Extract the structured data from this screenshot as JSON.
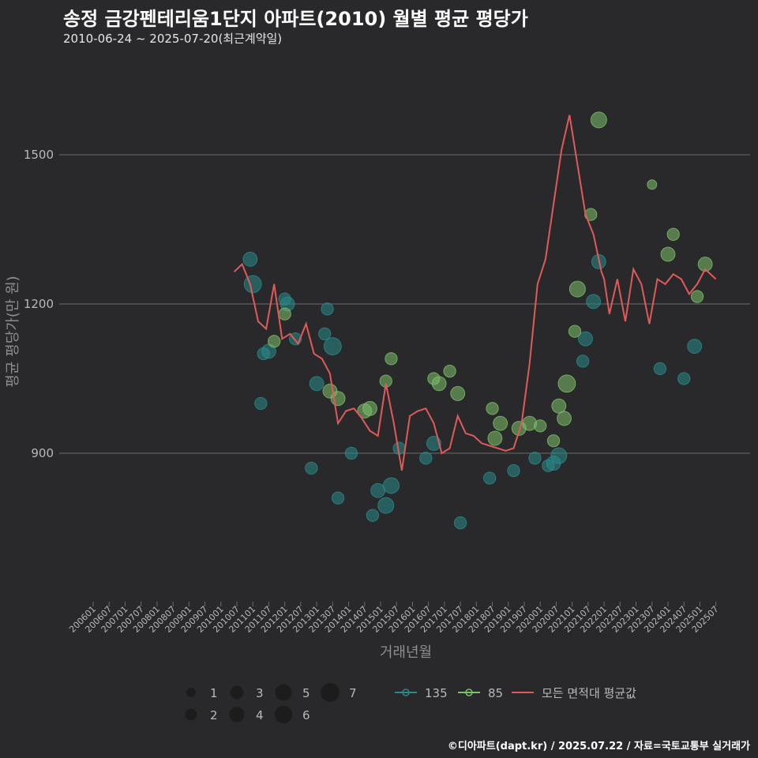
{
  "title": "송정 금강펜테리움1단지 아파트(2010) 월별 평균 평당가",
  "subtitle": "2010-06-24 ~ 2025-07-20(최근계약일)",
  "credit": "©디아파트(dapt.kr) / 2025.07.22 / 자료=국토교통부 실거래가",
  "colors": {
    "background": "#29292b",
    "grid": "#6b6b6b",
    "s135": "#2a8a8a",
    "s85": "#7dbf6a",
    "avg": "#e05a5a",
    "text": "#b8b8b8"
  },
  "chart_data": {
    "type": "scatter",
    "title": "송정 금강펜테리움1단지 아파트(2010) 월별 평균 평당가",
    "subtitle": "2010-06-24 ~ 2025-07-20(최근계약일)",
    "xlabel": "거래년월",
    "ylabel": "평균 평당가(만 원)",
    "ylim": [
      600,
      1680
    ],
    "yticks": [
      900,
      1200,
      1500
    ],
    "xticks": [
      "200601",
      "200607",
      "200701",
      "200707",
      "200801",
      "200807",
      "200901",
      "200907",
      "201001",
      "201007",
      "201101",
      "201107",
      "201201",
      "201207",
      "201301",
      "201307",
      "201401",
      "201407",
      "201501",
      "201507",
      "201601",
      "201607",
      "201701",
      "201707",
      "201801",
      "201807",
      "201901",
      "201907",
      "202001",
      "202007",
      "202101",
      "202107",
      "202201",
      "202207",
      "202301",
      "202307",
      "202401",
      "202407",
      "202501",
      "202507"
    ],
    "grid": true,
    "legend": {
      "size_title": "",
      "sizes": [
        1,
        2,
        3,
        4,
        5,
        6,
        7
      ],
      "series": [
        {
          "name": "135",
          "color": "#2a8a8a"
        },
        {
          "name": "85",
          "color": "#7dbf6a"
        },
        {
          "name": "모든 면적대 평균값",
          "color": "#e05a5a"
        }
      ]
    },
    "series": [
      {
        "name": "모든 면적대 평균값",
        "type": "line",
        "x": [
          "2010-06",
          "2010-09",
          "2010-12",
          "2011-03",
          "2011-06",
          "2011-09",
          "2011-12",
          "2012-03",
          "2012-06",
          "2012-09",
          "2012-12",
          "2013-03",
          "2013-06",
          "2013-09",
          "2013-12",
          "2014-03",
          "2014-06",
          "2014-09",
          "2014-12",
          "2015-03",
          "2015-06",
          "2015-09",
          "2015-12",
          "2016-03",
          "2016-06",
          "2016-09",
          "2016-12",
          "2017-03",
          "2017-06",
          "2017-09",
          "2017-12",
          "2018-03",
          "2018-06",
          "2018-09",
          "2018-12",
          "2019-03",
          "2019-06",
          "2019-09",
          "2019-12",
          "2020-03",
          "2020-06",
          "2020-09",
          "2020-12",
          "2021-03",
          "2021-06",
          "2021-09",
          "2021-12",
          "2022-01",
          "2022-03",
          "2022-06",
          "2022-09",
          "2022-12",
          "2023-03",
          "2023-06",
          "2023-09",
          "2023-12",
          "2024-03",
          "2024-06",
          "2024-09",
          "2024-12",
          "2025-03",
          "2025-07"
        ],
        "y": [
          1265,
          1280,
          1240,
          1165,
          1150,
          1240,
          1130,
          1140,
          1120,
          1160,
          1100,
          1090,
          1060,
          960,
          985,
          990,
          970,
          945,
          935,
          1040,
          960,
          865,
          975,
          985,
          990,
          960,
          900,
          910,
          975,
          940,
          935,
          920,
          915,
          910,
          905,
          910,
          960,
          1080,
          1240,
          1290,
          1400,
          1510,
          1580,
          1480,
          1380,
          1340,
          1265,
          1250,
          1180,
          1250,
          1165,
          1270,
          1240,
          1160,
          1250,
          1240,
          1260,
          1250,
          1220,
          1240,
          1270,
          1250
        ]
      },
      {
        "name": "135",
        "type": "scatter",
        "sizeKey": "count",
        "points": [
          {
            "x": "2010-12",
            "y": 1290,
            "n": 3
          },
          {
            "x": "2011-01",
            "y": 1240,
            "n": 5
          },
          {
            "x": "2011-04",
            "y": 1000,
            "n": 2
          },
          {
            "x": "2011-05",
            "y": 1100,
            "n": 2
          },
          {
            "x": "2011-07",
            "y": 1105,
            "n": 3
          },
          {
            "x": "2012-01",
            "y": 1210,
            "n": 2
          },
          {
            "x": "2012-02",
            "y": 1200,
            "n": 3
          },
          {
            "x": "2012-05",
            "y": 1130,
            "n": 2
          },
          {
            "x": "2012-11",
            "y": 870,
            "n": 2
          },
          {
            "x": "2013-01",
            "y": 1040,
            "n": 3
          },
          {
            "x": "2013-04",
            "y": 1140,
            "n": 2
          },
          {
            "x": "2013-05",
            "y": 1190,
            "n": 2
          },
          {
            "x": "2013-07",
            "y": 1115,
            "n": 5
          },
          {
            "x": "2013-09",
            "y": 810,
            "n": 2
          },
          {
            "x": "2014-02",
            "y": 900,
            "n": 2
          },
          {
            "x": "2014-10",
            "y": 775,
            "n": 2
          },
          {
            "x": "2014-12",
            "y": 825,
            "n": 3
          },
          {
            "x": "2015-03",
            "y": 795,
            "n": 4
          },
          {
            "x": "2015-05",
            "y": 835,
            "n": 4
          },
          {
            "x": "2015-08",
            "y": 910,
            "n": 2
          },
          {
            "x": "2016-06",
            "y": 890,
            "n": 2
          },
          {
            "x": "2016-09",
            "y": 920,
            "n": 3
          },
          {
            "x": "2017-07",
            "y": 760,
            "n": 2
          },
          {
            "x": "2018-06",
            "y": 850,
            "n": 2
          },
          {
            "x": "2019-03",
            "y": 865,
            "n": 2
          },
          {
            "x": "2019-11",
            "y": 890,
            "n": 2
          },
          {
            "x": "2020-04",
            "y": 875,
            "n": 2
          },
          {
            "x": "2020-06",
            "y": 880,
            "n": 3
          },
          {
            "x": "2020-08",
            "y": 895,
            "n": 4
          },
          {
            "x": "2021-05",
            "y": 1085,
            "n": 2
          },
          {
            "x": "2021-06",
            "y": 1130,
            "n": 3
          },
          {
            "x": "2021-09",
            "y": 1205,
            "n": 3
          },
          {
            "x": "2021-11",
            "y": 1285,
            "n": 3
          },
          {
            "x": "2023-10",
            "y": 1070,
            "n": 2
          },
          {
            "x": "2024-07",
            "y": 1050,
            "n": 2
          },
          {
            "x": "2024-11",
            "y": 1115,
            "n": 3
          }
        ]
      },
      {
        "name": "85",
        "type": "scatter",
        "sizeKey": "count",
        "points": [
          {
            "x": "2011-09",
            "y": 1125,
            "n": 2
          },
          {
            "x": "2012-01",
            "y": 1180,
            "n": 2
          },
          {
            "x": "2013-06",
            "y": 1025,
            "n": 3
          },
          {
            "x": "2013-09",
            "y": 1010,
            "n": 3
          },
          {
            "x": "2014-07",
            "y": 985,
            "n": 3
          },
          {
            "x": "2014-09",
            "y": 990,
            "n": 3
          },
          {
            "x": "2015-03",
            "y": 1045,
            "n": 2
          },
          {
            "x": "2015-05",
            "y": 1090,
            "n": 2
          },
          {
            "x": "2016-09",
            "y": 1050,
            "n": 2
          },
          {
            "x": "2016-11",
            "y": 1040,
            "n": 3
          },
          {
            "x": "2017-03",
            "y": 1065,
            "n": 2
          },
          {
            "x": "2017-06",
            "y": 1020,
            "n": 3
          },
          {
            "x": "2018-07",
            "y": 990,
            "n": 2
          },
          {
            "x": "2018-08",
            "y": 930,
            "n": 3
          },
          {
            "x": "2018-10",
            "y": 960,
            "n": 3
          },
          {
            "x": "2019-05",
            "y": 950,
            "n": 3
          },
          {
            "x": "2019-09",
            "y": 960,
            "n": 3
          },
          {
            "x": "2020-01",
            "y": 955,
            "n": 2
          },
          {
            "x": "2020-06",
            "y": 925,
            "n": 2
          },
          {
            "x": "2020-08",
            "y": 995,
            "n": 3
          },
          {
            "x": "2020-10",
            "y": 970,
            "n": 3
          },
          {
            "x": "2020-11",
            "y": 1040,
            "n": 5
          },
          {
            "x": "2021-02",
            "y": 1145,
            "n": 2
          },
          {
            "x": "2021-03",
            "y": 1230,
            "n": 4
          },
          {
            "x": "2021-08",
            "y": 1380,
            "n": 2
          },
          {
            "x": "2021-11",
            "y": 1570,
            "n": 4
          },
          {
            "x": "2023-07",
            "y": 1440,
            "n": 1
          },
          {
            "x": "2024-01",
            "y": 1300,
            "n": 3
          },
          {
            "x": "2024-03",
            "y": 1340,
            "n": 2
          },
          {
            "x": "2024-12",
            "y": 1215,
            "n": 2
          },
          {
            "x": "2025-03",
            "y": 1280,
            "n": 3
          }
        ]
      }
    ]
  }
}
